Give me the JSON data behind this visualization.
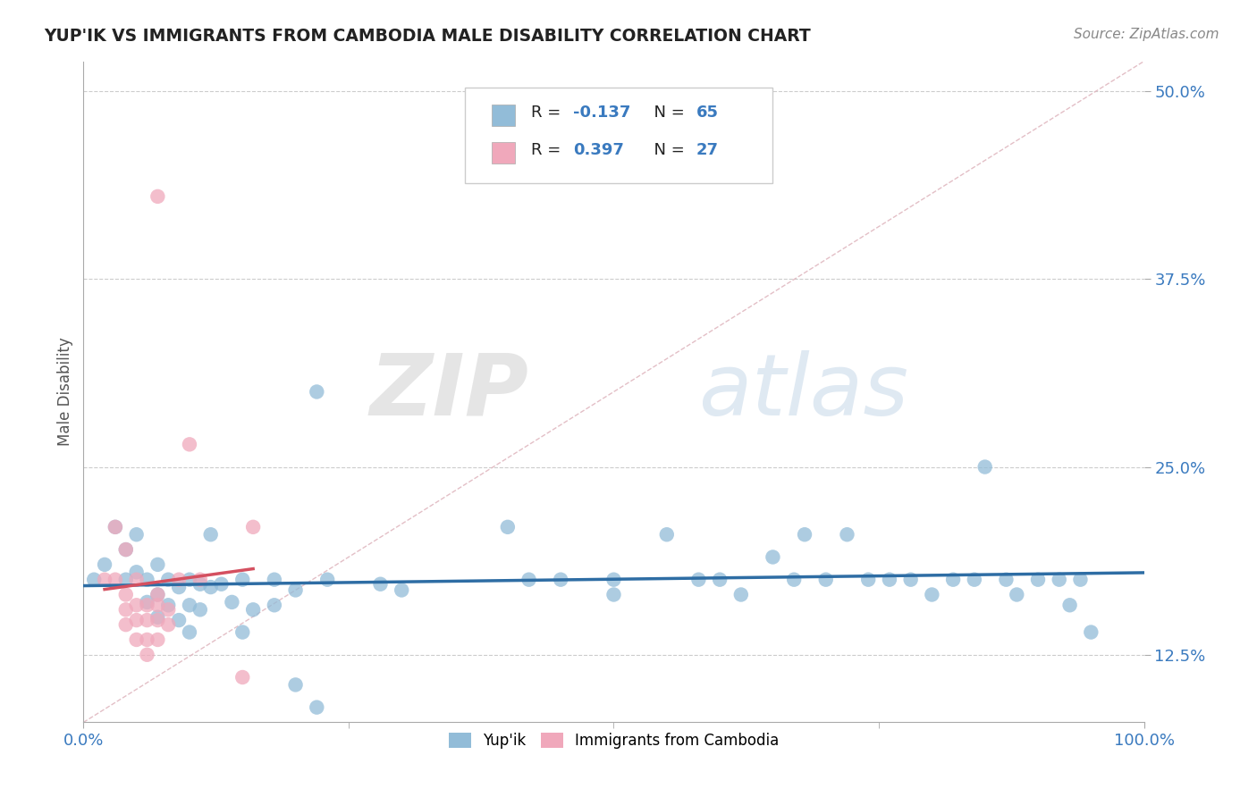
{
  "title": "YUP'IK VS IMMIGRANTS FROM CAMBODIA MALE DISABILITY CORRELATION CHART",
  "source": "Source: ZipAtlas.com",
  "ylabel": "Male Disability",
  "xlim": [
    0.0,
    1.0
  ],
  "ylim": [
    0.08,
    0.52
  ],
  "x_ticks": [
    0.0,
    1.0
  ],
  "x_tick_labels": [
    "0.0%",
    "100.0%"
  ],
  "y_ticks": [
    0.125,
    0.25,
    0.375,
    0.5
  ],
  "y_tick_labels": [
    "12.5%",
    "25.0%",
    "37.5%",
    "50.0%"
  ],
  "blue_color": "#92bcd8",
  "pink_color": "#f0a8bb",
  "blue_line_color": "#2e6da4",
  "pink_line_color": "#d45060",
  "diagonal_line_color": "#e0b8c0",
  "R_blue": -0.137,
  "N_blue": 65,
  "R_pink": 0.397,
  "N_pink": 27,
  "watermark_zip": "ZIP",
  "watermark_atlas": "atlas",
  "blue_points": [
    [
      0.01,
      0.175
    ],
    [
      0.02,
      0.185
    ],
    [
      0.03,
      0.21
    ],
    [
      0.04,
      0.195
    ],
    [
      0.04,
      0.175
    ],
    [
      0.05,
      0.205
    ],
    [
      0.05,
      0.18
    ],
    [
      0.06,
      0.175
    ],
    [
      0.06,
      0.16
    ],
    [
      0.07,
      0.185
    ],
    [
      0.07,
      0.165
    ],
    [
      0.07,
      0.15
    ],
    [
      0.08,
      0.175
    ],
    [
      0.08,
      0.158
    ],
    [
      0.09,
      0.17
    ],
    [
      0.09,
      0.148
    ],
    [
      0.1,
      0.175
    ],
    [
      0.1,
      0.158
    ],
    [
      0.1,
      0.14
    ],
    [
      0.11,
      0.172
    ],
    [
      0.11,
      0.155
    ],
    [
      0.12,
      0.205
    ],
    [
      0.12,
      0.17
    ],
    [
      0.13,
      0.172
    ],
    [
      0.14,
      0.16
    ],
    [
      0.15,
      0.175
    ],
    [
      0.15,
      0.14
    ],
    [
      0.16,
      0.155
    ],
    [
      0.18,
      0.175
    ],
    [
      0.18,
      0.158
    ],
    [
      0.2,
      0.168
    ],
    [
      0.22,
      0.3
    ],
    [
      0.23,
      0.175
    ],
    [
      0.28,
      0.172
    ],
    [
      0.3,
      0.168
    ],
    [
      0.4,
      0.21
    ],
    [
      0.42,
      0.175
    ],
    [
      0.45,
      0.175
    ],
    [
      0.5,
      0.175
    ],
    [
      0.5,
      0.165
    ],
    [
      0.55,
      0.205
    ],
    [
      0.58,
      0.175
    ],
    [
      0.6,
      0.175
    ],
    [
      0.62,
      0.165
    ],
    [
      0.65,
      0.19
    ],
    [
      0.67,
      0.175
    ],
    [
      0.68,
      0.205
    ],
    [
      0.7,
      0.175
    ],
    [
      0.72,
      0.205
    ],
    [
      0.74,
      0.175
    ],
    [
      0.76,
      0.175
    ],
    [
      0.78,
      0.175
    ],
    [
      0.8,
      0.165
    ],
    [
      0.82,
      0.175
    ],
    [
      0.84,
      0.175
    ],
    [
      0.85,
      0.25
    ],
    [
      0.87,
      0.175
    ],
    [
      0.88,
      0.165
    ],
    [
      0.9,
      0.175
    ],
    [
      0.92,
      0.175
    ],
    [
      0.93,
      0.158
    ],
    [
      0.94,
      0.175
    ],
    [
      0.95,
      0.14
    ],
    [
      0.2,
      0.105
    ],
    [
      0.22,
      0.09
    ]
  ],
  "pink_points": [
    [
      0.07,
      0.43
    ],
    [
      0.02,
      0.175
    ],
    [
      0.03,
      0.21
    ],
    [
      0.03,
      0.175
    ],
    [
      0.04,
      0.195
    ],
    [
      0.04,
      0.165
    ],
    [
      0.04,
      0.155
    ],
    [
      0.04,
      0.145
    ],
    [
      0.05,
      0.175
    ],
    [
      0.05,
      0.158
    ],
    [
      0.05,
      0.148
    ],
    [
      0.05,
      0.135
    ],
    [
      0.06,
      0.158
    ],
    [
      0.06,
      0.148
    ],
    [
      0.06,
      0.135
    ],
    [
      0.06,
      0.125
    ],
    [
      0.07,
      0.165
    ],
    [
      0.07,
      0.158
    ],
    [
      0.07,
      0.148
    ],
    [
      0.07,
      0.135
    ],
    [
      0.08,
      0.155
    ],
    [
      0.08,
      0.145
    ],
    [
      0.09,
      0.175
    ],
    [
      0.1,
      0.265
    ],
    [
      0.11,
      0.175
    ],
    [
      0.15,
      0.11
    ],
    [
      0.16,
      0.21
    ]
  ]
}
